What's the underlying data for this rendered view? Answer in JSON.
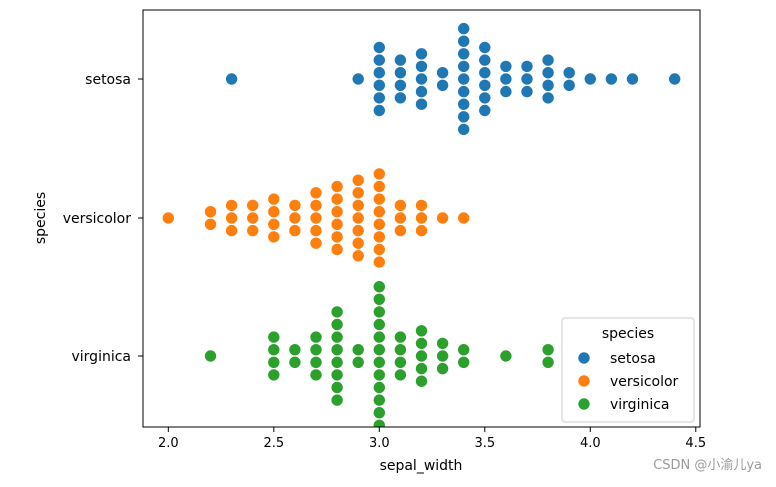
{
  "chart_data": {
    "type": "scatter",
    "subtype": "swarm",
    "title": "",
    "xlabel": "sepal_width",
    "ylabel": "species",
    "xlim": [
      1.88,
      4.52
    ],
    "xticks": [
      2.0,
      2.5,
      3.0,
      3.5,
      4.0,
      4.5
    ],
    "xtick_labels": [
      "2.0",
      "2.5",
      "3.0",
      "3.5",
      "4.0",
      "4.5"
    ],
    "categories": [
      "setosa",
      "versicolor",
      "virginica"
    ],
    "legend": {
      "title": "species",
      "placement": "lower-right",
      "entries": [
        "setosa",
        "versicolor",
        "virginica"
      ]
    },
    "series": [
      {
        "name": "setosa",
        "color": "#1f77b4",
        "values": [
          2.3,
          2.9,
          3.0,
          3.0,
          3.0,
          3.0,
          3.0,
          3.0,
          3.1,
          3.1,
          3.1,
          3.1,
          3.2,
          3.2,
          3.2,
          3.2,
          3.2,
          3.3,
          3.3,
          3.4,
          3.4,
          3.4,
          3.4,
          3.4,
          3.4,
          3.4,
          3.4,
          3.4,
          3.5,
          3.5,
          3.5,
          3.5,
          3.5,
          3.5,
          3.6,
          3.6,
          3.6,
          3.7,
          3.7,
          3.7,
          3.8,
          3.8,
          3.8,
          3.8,
          3.9,
          3.9,
          4.0,
          4.1,
          4.2,
          4.4
        ]
      },
      {
        "name": "versicolor",
        "color": "#ff7f0e",
        "values": [
          2.0,
          2.2,
          2.2,
          2.3,
          2.3,
          2.3,
          2.4,
          2.4,
          2.4,
          2.5,
          2.5,
          2.5,
          2.5,
          2.6,
          2.6,
          2.6,
          2.7,
          2.7,
          2.7,
          2.7,
          2.7,
          2.8,
          2.8,
          2.8,
          2.8,
          2.8,
          2.8,
          2.9,
          2.9,
          2.9,
          2.9,
          2.9,
          2.9,
          2.9,
          3.0,
          3.0,
          3.0,
          3.0,
          3.0,
          3.0,
          3.0,
          3.0,
          3.1,
          3.1,
          3.1,
          3.2,
          3.2,
          3.2,
          3.3,
          3.4
        ]
      },
      {
        "name": "virginica",
        "color": "#2ca02c",
        "values": [
          2.2,
          2.5,
          2.5,
          2.5,
          2.5,
          2.6,
          2.6,
          2.7,
          2.7,
          2.7,
          2.7,
          2.8,
          2.8,
          2.8,
          2.8,
          2.8,
          2.8,
          2.8,
          2.8,
          2.9,
          2.9,
          3.0,
          3.0,
          3.0,
          3.0,
          3.0,
          3.0,
          3.0,
          3.0,
          3.0,
          3.0,
          3.0,
          3.0,
          3.1,
          3.1,
          3.1,
          3.1,
          3.2,
          3.2,
          3.2,
          3.2,
          3.2,
          3.3,
          3.3,
          3.3,
          3.4,
          3.4,
          3.6,
          3.8,
          3.8
        ]
      }
    ]
  },
  "watermark": "CSDN @小渝儿ya"
}
